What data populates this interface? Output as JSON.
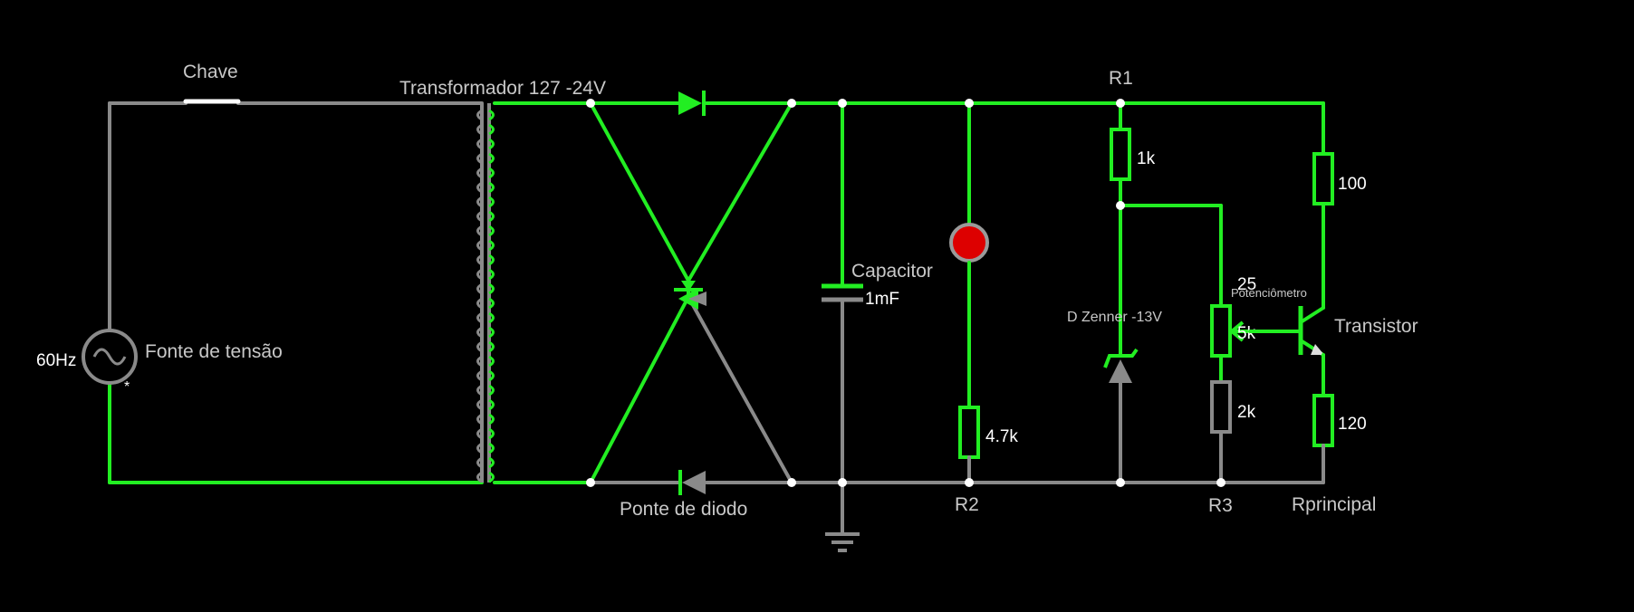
{
  "colors": {
    "background": "#000000",
    "active_wire": "#22ee22",
    "inactive_wire": "#8a8a8a",
    "led": "#dd0000",
    "text": "#c8c8c8"
  },
  "labels": {
    "switch": "Chave",
    "transformer": "Transformador 127 -24V",
    "source": "Fonte de tensão",
    "frequency": "60Hz",
    "source_marker": "*",
    "bridge": "Ponte de diodo",
    "capacitor": "Capacitor",
    "capacitor_value": "1mF",
    "r2": "R2",
    "r2_value": "4.7k",
    "r1": "R1",
    "r1_value": "1k",
    "zener": "D Zenner -13V",
    "potentiometer": "Potenciômetro",
    "pot_value_top": "25",
    "pot_value": "5k",
    "r3": "R3",
    "r3_value": "2k",
    "r_collector_value": "100",
    "transistor": "Transistor",
    "r_emitter_value": "120",
    "rprincipal": "Rprincipal"
  }
}
